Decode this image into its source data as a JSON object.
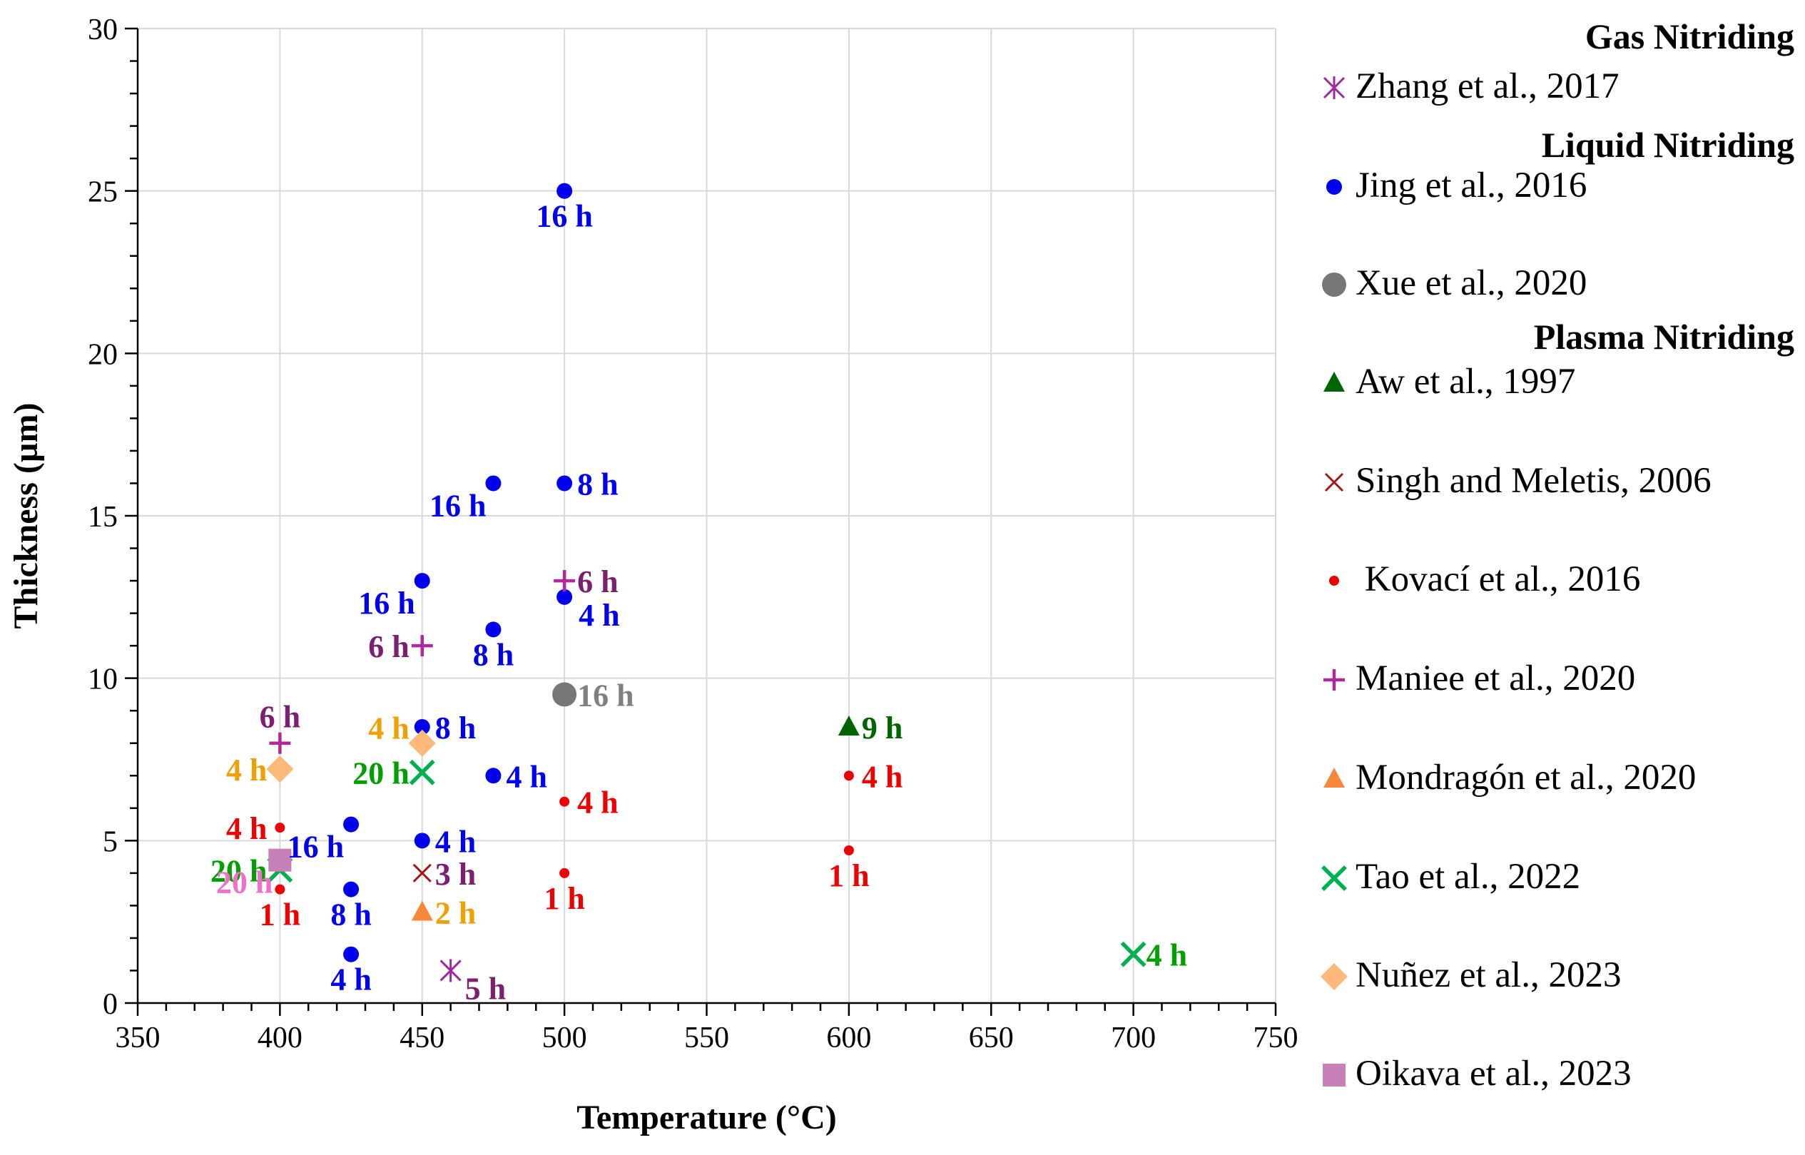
{
  "chart_data": {
    "type": "scatter",
    "xlabel": "Temperature (°C)",
    "ylabel": "Thickness (µm)",
    "xlim": [
      350,
      750
    ],
    "ylim": [
      0,
      30
    ],
    "xticks": [
      350,
      400,
      450,
      500,
      550,
      600,
      650,
      700,
      750
    ],
    "yticks": [
      0,
      5,
      10,
      15,
      20,
      25,
      30
    ],
    "grid": true,
    "legend_position": "right",
    "groups": [
      {
        "heading": "Gas Nitriding",
        "series_index": [
          0
        ]
      },
      {
        "heading": "Liquid  Nitriding",
        "series_index": [
          1,
          2
        ]
      },
      {
        "heading": "Plasma Nitriding",
        "series_index": [
          3,
          4,
          5,
          6,
          7,
          8,
          9,
          10
        ]
      }
    ],
    "series": [
      {
        "name": "Zhang et al., 2017",
        "marker": "asterisk",
        "color": "#a0289a",
        "label_color": "#7b2070",
        "points": [
          {
            "x": 460,
            "y": 1.0,
            "label": "5 h",
            "pos": "right-below"
          }
        ]
      },
      {
        "name": "Jing et al., 2016",
        "marker": "dot",
        "color": "#0000ee",
        "label_color": "#0000ee",
        "points": [
          {
            "x": 500,
            "y": 25.0,
            "label": "16 h",
            "pos": "below"
          },
          {
            "x": 475,
            "y": 16.0,
            "label": "16 h",
            "pos": "below-left"
          },
          {
            "x": 500,
            "y": 16.0,
            "label": "8 h",
            "pos": "right"
          },
          {
            "x": 450,
            "y": 13.0,
            "label": "16 h",
            "pos": "below-left"
          },
          {
            "x": 500,
            "y": 12.5,
            "label": "4 h",
            "pos": "right-below"
          },
          {
            "x": 475,
            "y": 11.5,
            "label": "8 h",
            "pos": "below"
          },
          {
            "x": 450,
            "y": 8.5,
            "label": "8 h",
            "pos": "right"
          },
          {
            "x": 475,
            "y": 7.0,
            "label": "4 h",
            "pos": "right"
          },
          {
            "x": 425,
            "y": 5.5,
            "label": "16 h",
            "pos": "below-left"
          },
          {
            "x": 450,
            "y": 5.0,
            "label": "4 h",
            "pos": "right"
          },
          {
            "x": 425,
            "y": 3.5,
            "label": "8 h",
            "pos": "below"
          },
          {
            "x": 425,
            "y": 1.5,
            "label": "4 h",
            "pos": "below"
          }
        ]
      },
      {
        "name": "Xue et al., 2020",
        "marker": "big-dot",
        "color": "#777777",
        "label_color": "#808080",
        "points": [
          {
            "x": 500,
            "y": 9.5,
            "label": "16 h",
            "pos": "right"
          }
        ]
      },
      {
        "name": "Aw et al., 1997",
        "marker": "triangle",
        "color": "#006400",
        "label_color": "#006400",
        "points": [
          {
            "x": 600,
            "y": 8.5,
            "label": "9 h",
            "pos": "right"
          }
        ]
      },
      {
        "name": "Singh and Meletis, 2006",
        "marker": "x-small",
        "color": "#a01818",
        "label_color": "#7b2070",
        "points": [
          {
            "x": 450,
            "y": 4.0,
            "label": "3 h",
            "pos": "right"
          }
        ]
      },
      {
        "name": " Kovací et al., 2016",
        "marker": "small-dot",
        "color": "#ee0000",
        "label_color": "#ee0000",
        "points": [
          {
            "x": 600,
            "y": 7.0,
            "label": "4 h",
            "pos": "right"
          },
          {
            "x": 500,
            "y": 6.2,
            "label": "4 h",
            "pos": "right"
          },
          {
            "x": 400,
            "y": 5.4,
            "label": "4 h",
            "pos": "left"
          },
          {
            "x": 600,
            "y": 4.7,
            "label": "1 h",
            "pos": "below"
          },
          {
            "x": 500,
            "y": 4.0,
            "label": "1 h",
            "pos": "below"
          },
          {
            "x": 400,
            "y": 3.5,
            "label": "1 h",
            "pos": "below"
          }
        ]
      },
      {
        "name": "Maniee et al., 2020",
        "marker": "plus",
        "color": "#b0289a",
        "label_color": "#7b2070",
        "points": [
          {
            "x": 500,
            "y": 13.0,
            "label": "6 h",
            "pos": "right"
          },
          {
            "x": 450,
            "y": 11.0,
            "label": "6 h",
            "pos": "left"
          },
          {
            "x": 400,
            "y": 8.0,
            "label": "6 h",
            "pos": "above"
          }
        ]
      },
      {
        "name": "Mondragón et al., 2020",
        "marker": "triangle",
        "color": "#f7883a",
        "label_color": "#f0a000",
        "points": [
          {
            "x": 450,
            "y": 2.8,
            "label": "2 h",
            "pos": "right"
          }
        ]
      },
      {
        "name": "Tao et al., 2022",
        "marker": "x-big",
        "color": "#00b050",
        "label_color": "#00a000",
        "points": [
          {
            "x": 700,
            "y": 1.5,
            "label": "4 h",
            "pos": "right"
          },
          {
            "x": 450,
            "y": 7.1,
            "label": "20 h",
            "pos": "left"
          },
          {
            "x": 400,
            "y": 4.1,
            "label": "20 h",
            "pos": "left"
          }
        ]
      },
      {
        "name": "Nuñez et al., 2023",
        "marker": "diamond",
        "color": "#fcb97a",
        "label_color": "#f0a000",
        "points": [
          {
            "x": 450,
            "y": 8.0,
            "label": "4 h",
            "pos": "above-left"
          },
          {
            "x": 400,
            "y": 7.2,
            "label": "4 h",
            "pos": "left"
          }
        ]
      },
      {
        "name": "Oikava et al., 2023",
        "marker": "square",
        "color": "#c880b8",
        "label_color": "#ee70c8",
        "points": [
          {
            "x": 400,
            "y": 4.4,
            "label": "20 h",
            "pos": "below-left"
          }
        ]
      }
    ]
  }
}
